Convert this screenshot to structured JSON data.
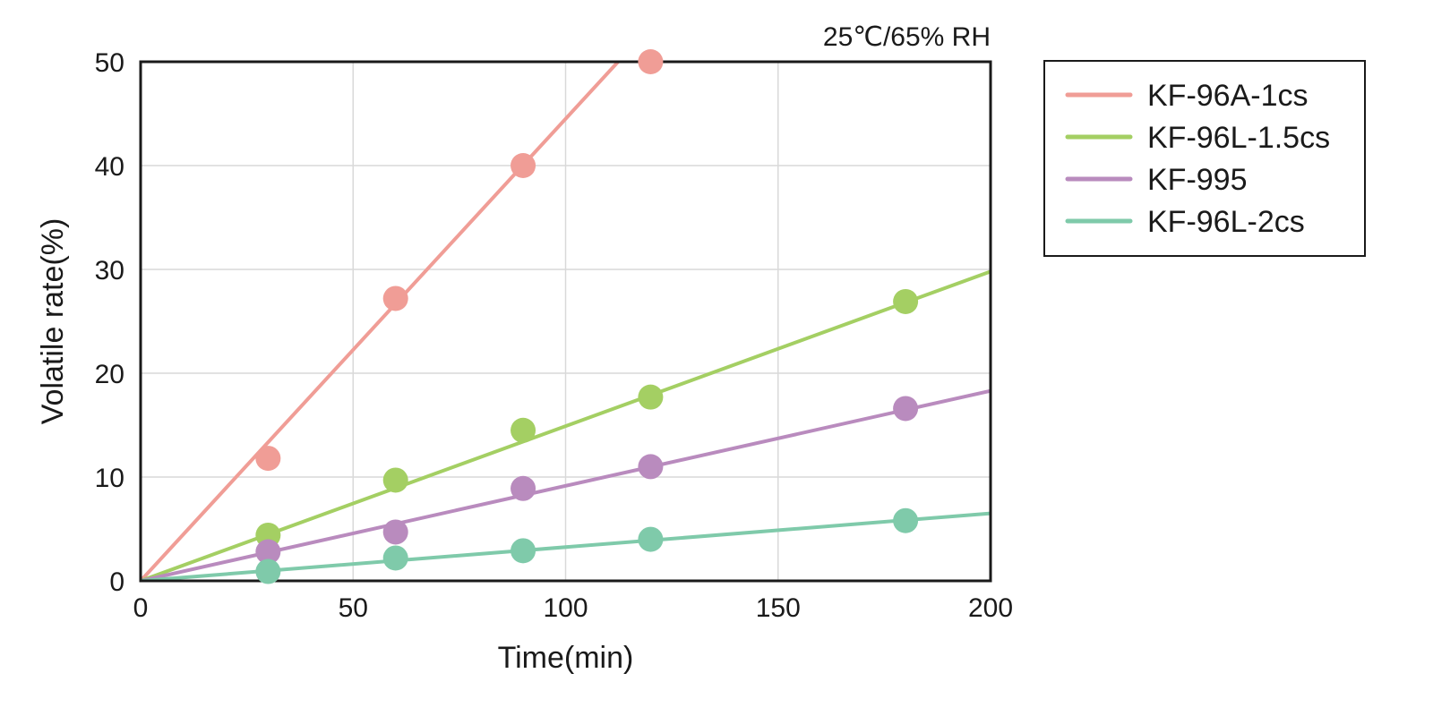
{
  "chart_data": {
    "type": "scatter",
    "annotation": "25℃/65% RH",
    "xlabel": "Time(min)",
    "ylabel": "Volatile rate(%)",
    "xlim": [
      0,
      200
    ],
    "ylim": [
      0,
      50
    ],
    "xticks": [
      0,
      50,
      100,
      150,
      200
    ],
    "yticks": [
      0,
      10,
      20,
      30,
      40,
      50
    ],
    "grid": true,
    "legend_position": "right",
    "series": [
      {
        "name": "KF-96A-1cs",
        "color": "#f09d96",
        "points": [
          [
            30,
            11.8
          ],
          [
            60,
            27.2
          ],
          [
            90,
            40.0
          ],
          [
            120,
            50.0
          ]
        ],
        "trend_slope": 0.445
      },
      {
        "name": "KF-96L-1.5cs",
        "color": "#a4cf63",
        "points": [
          [
            30,
            4.4
          ],
          [
            60,
            9.7
          ],
          [
            90,
            14.5
          ],
          [
            120,
            17.7
          ],
          [
            180,
            26.9
          ]
        ],
        "trend_slope": 0.149
      },
      {
        "name": "KF-995",
        "color": "#b98bbe",
        "points": [
          [
            30,
            2.8
          ],
          [
            60,
            4.7
          ],
          [
            90,
            8.9
          ],
          [
            120,
            11.0
          ],
          [
            180,
            16.6
          ]
        ],
        "trend_slope": 0.0915
      },
      {
        "name": "KF-96L-2cs",
        "color": "#7fcaaa",
        "points": [
          [
            30,
            0.9
          ],
          [
            60,
            2.2
          ],
          [
            90,
            2.9
          ],
          [
            120,
            4.0
          ],
          [
            180,
            5.8
          ]
        ],
        "trend_slope": 0.0325
      }
    ]
  }
}
